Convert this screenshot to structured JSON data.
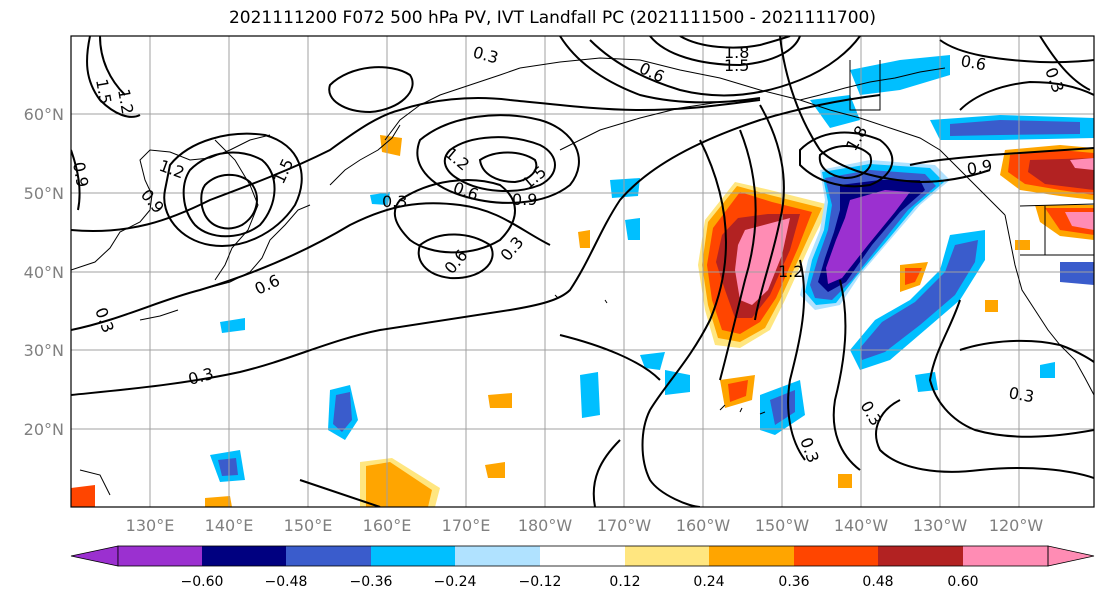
{
  "title": "2021111200 F072 500 hPa PV, IVT Landfall PC (2021111500 - 2021111700)",
  "lat_labels": [
    "60°N",
    "50°N",
    "40°N",
    "30°N",
    "20°N"
  ],
  "lon_labels": [
    "130°E",
    "140°E",
    "150°E",
    "160°E",
    "170°E",
    "180°W",
    "170°W",
    "160°W",
    "150°W",
    "140°W",
    "130°W",
    "120°W"
  ],
  "colorbar": {
    "tick_labels": [
      "−0.60",
      "−0.48",
      "−0.36",
      "−0.24",
      "−0.12",
      "0.12",
      "0.24",
      "0.36",
      "0.48",
      "0.60"
    ],
    "colors": [
      "#9b30d0",
      "#000080",
      "#3a5ccc",
      "#00bfff",
      "#b0e2ff",
      "#ffffff",
      "#ffe680",
      "#ffa500",
      "#ff4500",
      "#b22222",
      "#ff8cb4"
    ]
  },
  "contour_labels": [
    "0.3",
    "1.8",
    "1.5",
    "0.6",
    "0.6",
    "1.5",
    "1.2",
    "1.2",
    "1.5",
    "0.9",
    "0.9",
    "1.2",
    "0.3",
    "0.6",
    "0.9",
    "1.5",
    "0.3",
    "0.6",
    "0.3",
    "0.6",
    "1.2",
    "1.8",
    "0.9",
    "0.3",
    "0.3",
    "0.3",
    "0.3",
    "0.3"
  ],
  "colors": {
    "contour": "#000000",
    "grid": "#a0a0a0",
    "axis_text": "#808080"
  }
}
